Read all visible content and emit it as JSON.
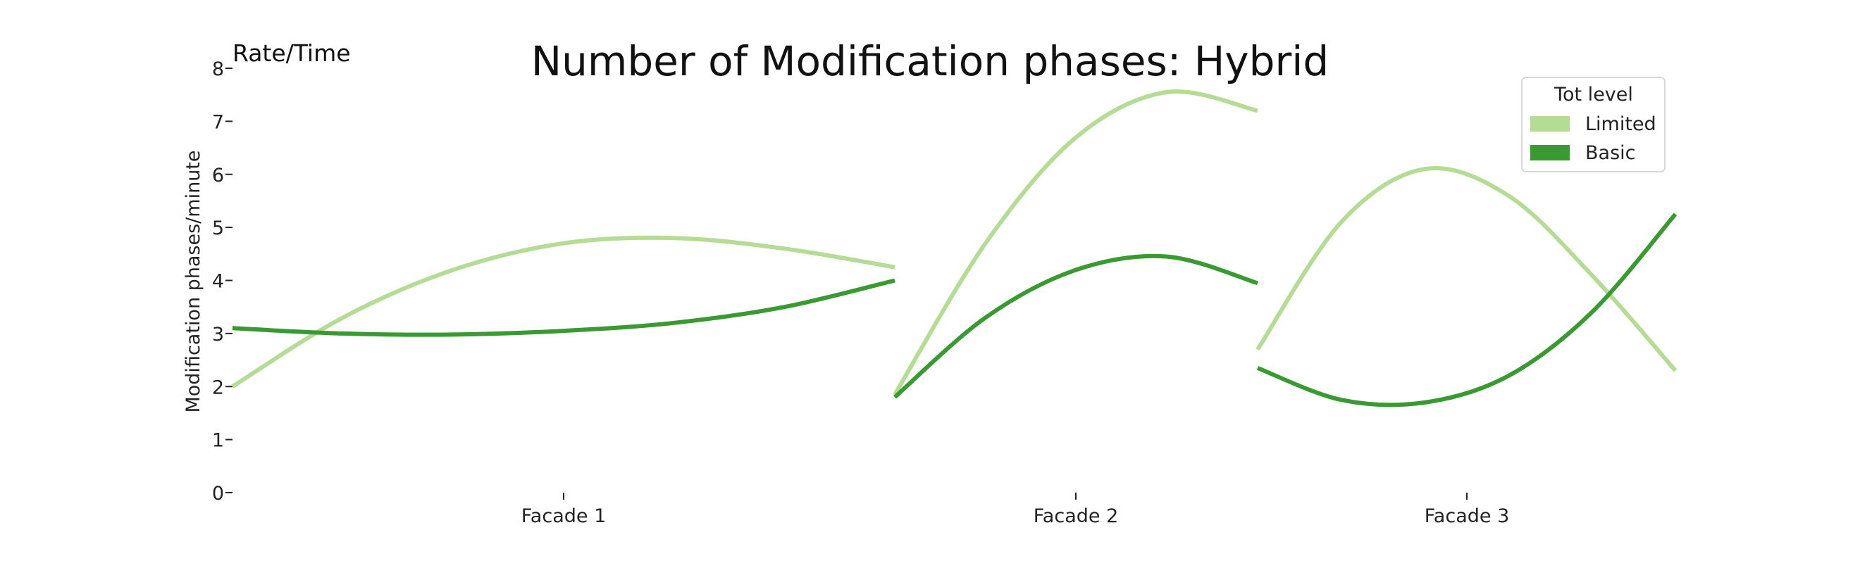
{
  "chart_data": {
    "type": "line",
    "title": "Number of Modification phases: Hybrid",
    "corner_label": "Rate/Time",
    "ylabel": "Modification phases/minute",
    "xlabel": "",
    "ylim": [
      0,
      8
    ],
    "yticks": [
      "0",
      "1",
      "2",
      "3",
      "4",
      "5",
      "6",
      "7",
      "8"
    ],
    "categories": [
      "Facade 1",
      "Facade 2",
      "Facade 3"
    ],
    "grid": false,
    "legend": {
      "title": "Tot level",
      "placement": "top-right"
    },
    "series": [
      {
        "name": "Limited",
        "color": "#b4dc94",
        "segments": [
          {
            "category": "Facade 1",
            "values": [
              2.0,
              3.3,
              4.2,
              4.7,
              4.8,
              4.6,
              4.25
            ]
          },
          {
            "category": "Facade 2",
            "values": [
              1.85,
              4.7,
              6.7,
              7.55,
              7.2
            ]
          },
          {
            "category": "Facade 3",
            "values": [
              2.7,
              5.1,
              6.1,
              5.6,
              4.1,
              2.3
            ]
          }
        ]
      },
      {
        "name": "Basic",
        "color": "#3a9a32",
        "segments": [
          {
            "category": "Facade 1",
            "values": [
              3.1,
              3.0,
              2.98,
              3.05,
              3.2,
              3.5,
              4.0
            ]
          },
          {
            "category": "Facade 2",
            "values": [
              1.8,
              3.3,
              4.2,
              4.45,
              3.95
            ]
          },
          {
            "category": "Facade 3",
            "values": [
              2.35,
              1.75,
              1.7,
              2.2,
              3.4,
              5.25
            ]
          }
        ]
      }
    ]
  }
}
